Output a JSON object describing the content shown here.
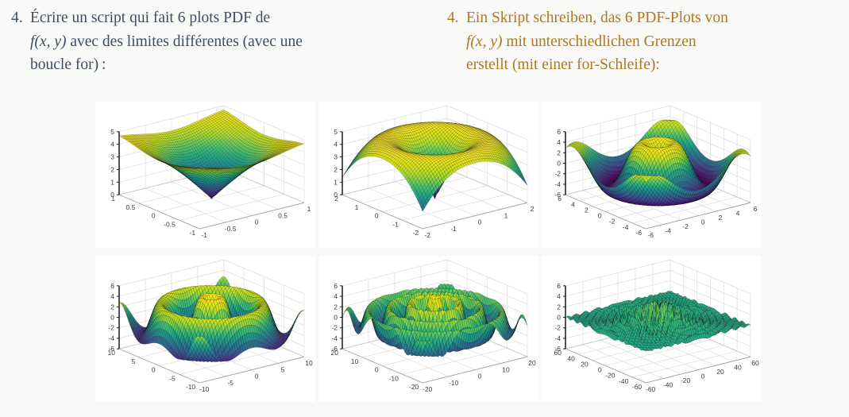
{
  "page": {
    "background": "#f9f9f8",
    "panel_background": "#ffffff"
  },
  "exercise": {
    "french": {
      "color": "#3e4e60",
      "number": "4.",
      "line1": "Écrire un script qui fait 6 plots PDF de",
      "line2_math": "f(x, y)",
      "line2_rest": " avec des limites différentes (avec une",
      "line3": "boucle for) :"
    },
    "german": {
      "color": "#b1771e",
      "number": "4.",
      "line1": "Ein Skript schreiben, das 6 PDF-Plots von",
      "line2_math": "f(x, y)",
      "line2_rest": " mit unterschiedlichen Grenzen",
      "line3": "erstellt (mit einer for-Schleife):"
    }
  },
  "chart_data": {
    "type": "surface",
    "layout": {
      "rows": 2,
      "cols": 3
    },
    "colormap": "viridis",
    "view": {
      "azimuth_deg": -37.5,
      "elevation_deg": 30
    },
    "surface_model": {
      "formula_estimated": "z = amp*sin(r)*exp(-r/decay), r = sqrt(x^2+y^2)",
      "amp": 5,
      "decay": 25,
      "grid_points": 50
    },
    "tick_color": "#3a3a3a",
    "grid_color": "#dcdcdc",
    "panels": [
      {
        "id": "plot-1",
        "xlim": [
          -1,
          1
        ],
        "ylim": [
          -1,
          1
        ],
        "zlim": [
          0,
          5
        ],
        "xticks": [
          -1,
          -0.5,
          0,
          0.5,
          1
        ],
        "yticks": [
          -1,
          -0.5,
          0,
          0.5,
          1
        ],
        "zticks": [
          0,
          1,
          2,
          3,
          4,
          5
        ]
      },
      {
        "id": "plot-2",
        "xlim": [
          -2,
          2
        ],
        "ylim": [
          -2,
          2
        ],
        "zlim": [
          0,
          5
        ],
        "xticks": [
          -2,
          -1,
          0,
          1,
          2
        ],
        "yticks": [
          -2,
          -1,
          0,
          1,
          2
        ],
        "zticks": [
          0,
          1,
          2,
          3,
          4,
          5
        ]
      },
      {
        "id": "plot-3",
        "xlim": [
          -6,
          6
        ],
        "ylim": [
          -6,
          6
        ],
        "zlim": [
          -6,
          6
        ],
        "xticks": [
          -6,
          -4,
          -2,
          0,
          2,
          4,
          6
        ],
        "yticks": [
          -6,
          -4,
          -2,
          0,
          2,
          4,
          6
        ],
        "zticks": [
          -6,
          -4,
          -2,
          0,
          2,
          4,
          6
        ]
      },
      {
        "id": "plot-4",
        "xlim": [
          -10,
          10
        ],
        "ylim": [
          -10,
          10
        ],
        "zlim": [
          -6,
          6
        ],
        "xticks": [
          -10,
          -5,
          0,
          5,
          10
        ],
        "yticks": [
          -10,
          -5,
          0,
          5,
          10
        ],
        "zticks": [
          -6,
          -4,
          -2,
          0,
          2,
          4,
          6
        ]
      },
      {
        "id": "plot-5",
        "xlim": [
          -20,
          20
        ],
        "ylim": [
          -20,
          20
        ],
        "zlim": [
          -6,
          6
        ],
        "xticks": [
          -20,
          -10,
          0,
          10,
          20
        ],
        "yticks": [
          -20,
          -10,
          0,
          10,
          20
        ],
        "zticks": [
          -6,
          -4,
          -2,
          0,
          2,
          4,
          6
        ]
      },
      {
        "id": "plot-6",
        "xlim": [
          -60,
          60
        ],
        "ylim": [
          -60,
          60
        ],
        "zlim": [
          -6,
          6
        ],
        "xticks": [
          -60,
          -40,
          -20,
          0,
          20,
          40,
          60
        ],
        "yticks": [
          -60,
          -40,
          -20,
          0,
          20,
          40,
          60
        ],
        "zticks": [
          -6,
          -4,
          -2,
          0,
          2,
          4,
          6
        ]
      }
    ]
  }
}
